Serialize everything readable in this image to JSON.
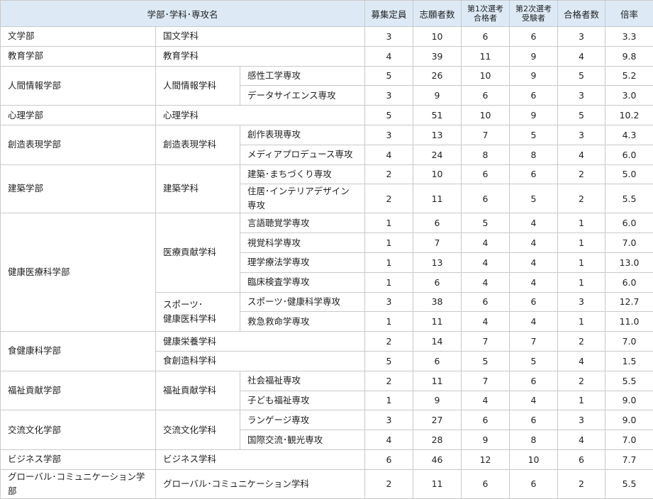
{
  "header": {
    "name": "学部･学科･専攻名",
    "columns": [
      "募集定員",
      "志願者数",
      "第1次選考\n合格者",
      "第2次選考\n受験者",
      "合格者数",
      "倍率"
    ]
  },
  "colors": {
    "header_bg": "#ddeaf6",
    "border": "#c9c9c9"
  },
  "departments": [
    {
      "name": "文学部",
      "subjects": [
        {
          "name": "国文学科",
          "values": [
            "3",
            "10",
            "6",
            "6",
            "3",
            "3.3"
          ]
        }
      ]
    },
    {
      "name": "教育学部",
      "subjects": [
        {
          "name": "教育学科",
          "values": [
            "4",
            "39",
            "11",
            "9",
            "4",
            "9.8"
          ]
        }
      ]
    },
    {
      "name": "人間情報学部",
      "subjects": [
        {
          "name": "人間情報学科",
          "majors": [
            {
              "name": "感性工学専攻",
              "values": [
                "5",
                "26",
                "10",
                "9",
                "5",
                "5.2"
              ]
            },
            {
              "name": "データサイエンス専攻",
              "values": [
                "3",
                "9",
                "6",
                "6",
                "3",
                "3.0"
              ]
            }
          ]
        }
      ]
    },
    {
      "name": "心理学部",
      "subjects": [
        {
          "name": "心理学科",
          "values": [
            "5",
            "51",
            "10",
            "9",
            "5",
            "10.2"
          ]
        }
      ]
    },
    {
      "name": "創造表現学部",
      "subjects": [
        {
          "name": "創造表現学科",
          "majors": [
            {
              "name": "創作表現専攻",
              "values": [
                "3",
                "13",
                "7",
                "5",
                "3",
                "4.3"
              ]
            },
            {
              "name": "メディアプロデュース専攻",
              "values": [
                "4",
                "24",
                "8",
                "8",
                "4",
                "6.0"
              ]
            }
          ]
        }
      ]
    },
    {
      "name": "建築学部",
      "subjects": [
        {
          "name": "建築学科",
          "majors": [
            {
              "name": "建築･まちづくり専攻",
              "values": [
                "2",
                "10",
                "6",
                "6",
                "2",
                "5.0"
              ]
            },
            {
              "name": "住居･インテリアデザイン専攻",
              "values": [
                "2",
                "11",
                "6",
                "5",
                "2",
                "5.5"
              ]
            }
          ]
        }
      ]
    },
    {
      "name": "健康医療科学部",
      "subjects": [
        {
          "name": "医療貢献学科",
          "majors": [
            {
              "name": "言語聴覚学専攻",
              "values": [
                "1",
                "6",
                "5",
                "4",
                "1",
                "6.0"
              ]
            },
            {
              "name": "視覚科学専攻",
              "values": [
                "1",
                "7",
                "4",
                "4",
                "1",
                "7.0"
              ]
            },
            {
              "name": "理学療法学専攻",
              "values": [
                "1",
                "13",
                "4",
                "4",
                "1",
                "13.0"
              ]
            },
            {
              "name": "臨床検査学専攻",
              "values": [
                "1",
                "6",
                "4",
                "4",
                "1",
                "6.0"
              ]
            }
          ]
        },
        {
          "name": "スポーツ･\n健康医科学科",
          "majors": [
            {
              "name": "スポーツ･健康科学専攻",
              "values": [
                "3",
                "38",
                "6",
                "6",
                "3",
                "12.7"
              ]
            },
            {
              "name": "救急救命学専攻",
              "values": [
                "1",
                "11",
                "4",
                "4",
                "1",
                "11.0"
              ]
            }
          ]
        }
      ]
    },
    {
      "name": "食健康科学部",
      "subjects": [
        {
          "name": "健康栄養学科",
          "values": [
            "2",
            "14",
            "7",
            "7",
            "2",
            "7.0"
          ]
        },
        {
          "name": "食創造科学科",
          "values": [
            "5",
            "6",
            "5",
            "5",
            "4",
            "1.5"
          ]
        }
      ]
    },
    {
      "name": "福祉貢献学部",
      "subjects": [
        {
          "name": "福祉貢献学科",
          "majors": [
            {
              "name": "社会福祉専攻",
              "values": [
                "2",
                "11",
                "7",
                "6",
                "2",
                "5.5"
              ]
            },
            {
              "name": "子ども福祉専攻",
              "values": [
                "1",
                "9",
                "4",
                "4",
                "1",
                "9.0"
              ]
            }
          ]
        }
      ]
    },
    {
      "name": "交流文化学部",
      "subjects": [
        {
          "name": "交流文化学科",
          "majors": [
            {
              "name": "ランゲージ専攻",
              "values": [
                "3",
                "27",
                "6",
                "6",
                "3",
                "9.0"
              ]
            },
            {
              "name": "国際交流･観光専攻",
              "values": [
                "4",
                "28",
                "9",
                "8",
                "4",
                "7.0"
              ]
            }
          ]
        }
      ]
    },
    {
      "name": "ビジネス学部",
      "subjects": [
        {
          "name": "ビジネス学科",
          "values": [
            "6",
            "46",
            "12",
            "10",
            "6",
            "7.7"
          ]
        }
      ]
    },
    {
      "name": "グローバル･コミュニケーション学部",
      "subjects": [
        {
          "name": "グローバル･コミュニケーション学科",
          "values": [
            "2",
            "11",
            "6",
            "6",
            "2",
            "5.5"
          ]
        }
      ]
    }
  ]
}
